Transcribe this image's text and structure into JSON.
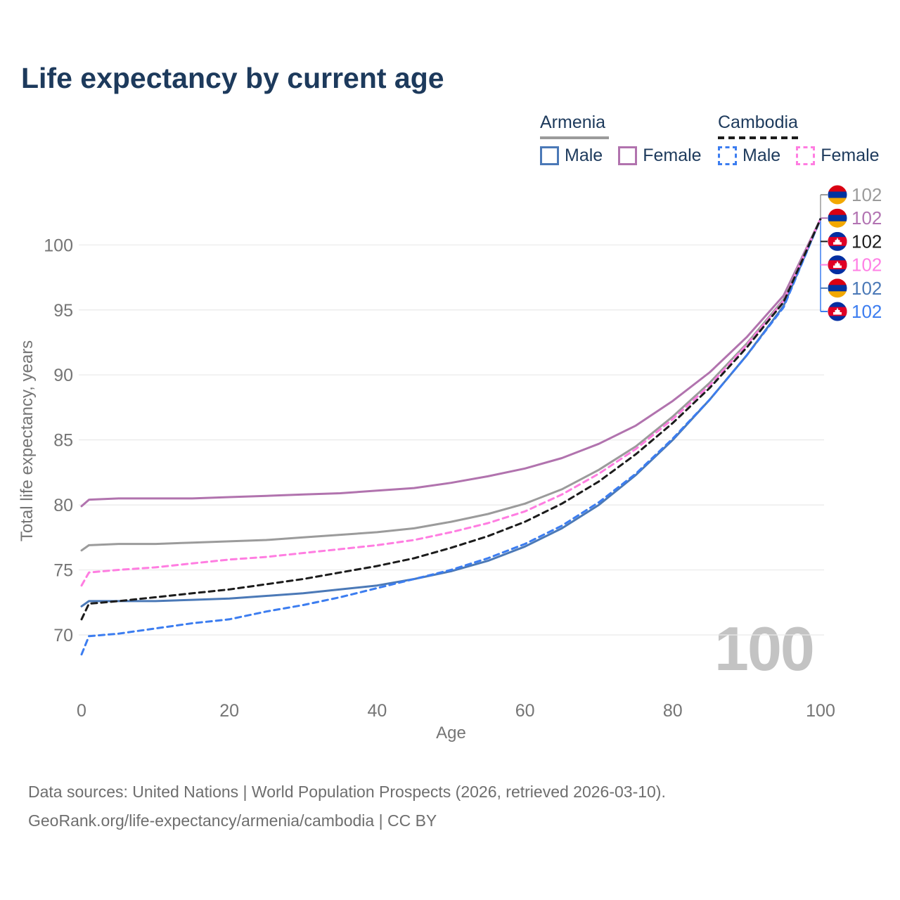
{
  "title": "Life expectancy by current age",
  "legend": {
    "groups": [
      {
        "label": "Armenia",
        "items": [
          {
            "label": "Male"
          },
          {
            "label": "Female"
          }
        ]
      },
      {
        "label": "Cambodia",
        "items": [
          {
            "label": "Male"
          },
          {
            "label": "Female"
          }
        ]
      }
    ]
  },
  "watermark": {
    "text": "100"
  },
  "footer": {
    "line1": "Data sources: United Nations | World Population Prospects (2026, retrieved 2026-03-10).",
    "line2": "GeoRank.org/life-expectancy/armenia/cambodia | CC BY"
  },
  "colors": {
    "title_navy": "#1d3a5c",
    "axis_text": "#757575",
    "gridline": "#e9e9e9",
    "watermark_gray": "#c3c3c3"
  },
  "chart_data": {
    "type": "line",
    "title": "Life expectancy by current age",
    "xlabel": "Age",
    "ylabel": "Total life expectancy, years",
    "xlim": [
      0,
      100
    ],
    "ylim": [
      68,
      102.5
    ],
    "xticks": [
      0,
      20,
      40,
      60,
      80,
      100
    ],
    "yticks": [
      70,
      75,
      80,
      85,
      90,
      95,
      100
    ],
    "grid": "horizontal",
    "legend_position": "top-right",
    "x": [
      0,
      1,
      5,
      10,
      15,
      20,
      25,
      30,
      35,
      40,
      45,
      50,
      55,
      60,
      65,
      70,
      75,
      80,
      85,
      90,
      95,
      100
    ],
    "series": [
      {
        "name": "Armenia Male",
        "country": "Armenia",
        "sex": "Male",
        "style": "solid",
        "color": "#4b79b7",
        "values": [
          72.2,
          72.6,
          72.6,
          72.6,
          72.7,
          72.8,
          73.0,
          73.2,
          73.5,
          73.8,
          74.3,
          74.9,
          75.7,
          76.8,
          78.2,
          80.0,
          82.3,
          85.0,
          88.1,
          91.5,
          95.3,
          102.0
        ]
      },
      {
        "name": "Armenia Female",
        "country": "Armenia",
        "sex": "Female",
        "style": "solid",
        "color": "#b173ae",
        "values": [
          79.9,
          80.4,
          80.5,
          80.5,
          80.5,
          80.6,
          80.7,
          80.8,
          80.9,
          81.1,
          81.3,
          81.7,
          82.2,
          82.8,
          83.6,
          84.7,
          86.1,
          88.0,
          90.2,
          92.9,
          96.1,
          102.0
        ]
      },
      {
        "name": "Armenia Total",
        "country": "Armenia",
        "sex": "Total",
        "style": "solid",
        "color": "#9b9b9b",
        "values": [
          76.5,
          76.9,
          77.0,
          77.0,
          77.1,
          77.2,
          77.3,
          77.5,
          77.7,
          77.9,
          78.2,
          78.7,
          79.3,
          80.1,
          81.2,
          82.7,
          84.5,
          86.8,
          89.4,
          92.4,
          95.8,
          102.0
        ]
      },
      {
        "name": "Cambodia Male",
        "country": "Cambodia",
        "sex": "Male",
        "style": "dashed",
        "color": "#3c7df0",
        "values": [
          68.5,
          69.9,
          70.1,
          70.5,
          70.9,
          71.2,
          71.8,
          72.3,
          72.9,
          73.6,
          74.3,
          75.0,
          75.9,
          77.0,
          78.4,
          80.2,
          82.4,
          85.1,
          88.1,
          91.5,
          95.2,
          102.0
        ]
      },
      {
        "name": "Cambodia Female",
        "country": "Cambodia",
        "sex": "Female",
        "style": "dashed",
        "color": "#ff7de1",
        "values": [
          73.8,
          74.8,
          75.0,
          75.2,
          75.5,
          75.8,
          76.0,
          76.3,
          76.6,
          76.9,
          77.3,
          77.9,
          78.6,
          79.5,
          80.8,
          82.4,
          84.3,
          86.6,
          89.2,
          92.3,
          95.7,
          102.0
        ]
      },
      {
        "name": "Cambodia Total",
        "country": "Cambodia",
        "sex": "Total",
        "style": "dashed",
        "color": "#1c1c1c",
        "values": [
          71.2,
          72.4,
          72.6,
          72.9,
          73.2,
          73.5,
          73.9,
          74.3,
          74.8,
          75.3,
          75.9,
          76.7,
          77.6,
          78.7,
          80.1,
          81.8,
          83.9,
          86.3,
          89.0,
          92.1,
          95.6,
          102.0
        ]
      }
    ],
    "end_labels": [
      {
        "value": "102",
        "series": "Armenia Total",
        "flag": "armenia",
        "color": "#9b9b9b"
      },
      {
        "value": "102",
        "series": "Armenia Female",
        "flag": "armenia",
        "color": "#b273b2"
      },
      {
        "value": "102",
        "series": "Cambodia Total",
        "flag": "cambodia",
        "color": "#1c1c1c"
      },
      {
        "value": "102",
        "series": "Cambodia Female",
        "flag": "cambodia",
        "color": "#ff80e5"
      },
      {
        "value": "102",
        "series": "Armenia Male",
        "flag": "armenia",
        "color": "#4b79b7"
      },
      {
        "value": "102",
        "series": "Cambodia Male",
        "flag": "cambodia",
        "color": "#3c7df0"
      }
    ],
    "flag_colors": {
      "armenia": [
        "#D90012",
        "#0033A0",
        "#F2A800"
      ],
      "cambodia": {
        "band": "#032EA1",
        "middle": "#E00025",
        "emblem": "#FFFFFF"
      }
    }
  }
}
